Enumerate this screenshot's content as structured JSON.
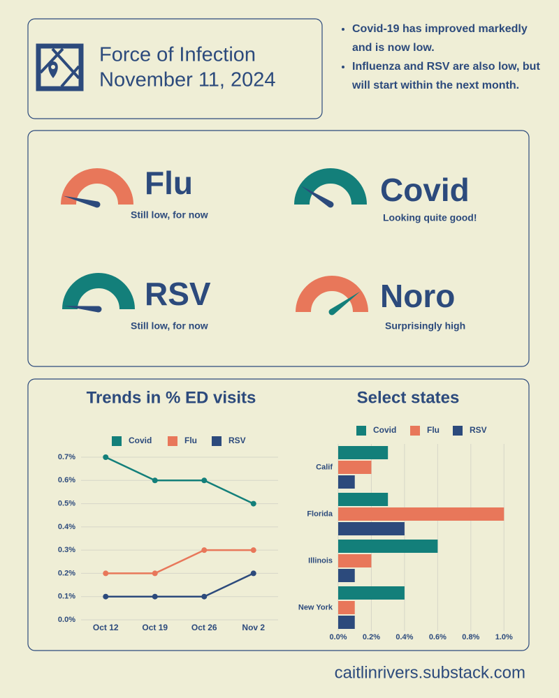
{
  "header": {
    "title": "Force of Infection",
    "date": "November 11, 2024"
  },
  "bullets": [
    "Covid-19 has improved markedly and is now low.",
    "Influenza and RSV are also low, but will start within the next month."
  ],
  "gauges": [
    {
      "name": "Flu",
      "caption": "Still low, for now",
      "level": 0.08,
      "color": "#e8775a",
      "needle_color": "#2c4a7c"
    },
    {
      "name": "Covid",
      "caption": "Looking quite good!",
      "level": 0.18,
      "color": "#137f7a",
      "needle_color": "#2c4a7c"
    },
    {
      "name": "RSV",
      "caption": "Still low, for now",
      "level": 0.03,
      "color": "#137f7a",
      "needle_color": "#2c4a7c"
    },
    {
      "name": "Noro",
      "caption": "Surprisingly high",
      "level": 0.8,
      "color": "#e8775a",
      "needle_color": "#137f7a"
    }
  ],
  "chart_data": [
    {
      "type": "line",
      "title": "Trends in % ED visits",
      "categories": [
        "Oct 12",
        "Oct 19",
        "Oct 26",
        "Nov 2"
      ],
      "series": [
        {
          "name": "Covid",
          "color": "#137f7a",
          "values": [
            0.7,
            0.6,
            0.6,
            0.5
          ]
        },
        {
          "name": "Flu",
          "color": "#e8775a",
          "values": [
            0.2,
            0.2,
            0.3,
            0.3
          ]
        },
        {
          "name": "RSV",
          "color": "#2c4a7c",
          "values": [
            0.1,
            0.1,
            0.1,
            0.2
          ]
        }
      ],
      "ylim": [
        0,
        0.7
      ],
      "yticks": [
        {
          "value": 0,
          "label": "0.0%"
        },
        {
          "value": 0.1,
          "label": "0.1%"
        },
        {
          "value": 0.2,
          "label": "0.2%"
        },
        {
          "value": 0.3,
          "label": "0.3%"
        },
        {
          "value": 0.4,
          "label": "0.4%"
        },
        {
          "value": 0.5,
          "label": "0.5%"
        },
        {
          "value": 0.6,
          "label": "0.6%"
        },
        {
          "value": 0.7,
          "label": "0.7%"
        }
      ],
      "grid": true
    },
    {
      "type": "hbar",
      "title": "Select states",
      "categories": [
        "Calif",
        "Florida",
        "Illinois",
        "New York"
      ],
      "series": [
        {
          "name": "Covid",
          "color": "#137f7a",
          "values": [
            0.3,
            0.3,
            0.6,
            0.4
          ]
        },
        {
          "name": "Flu",
          "color": "#e8775a",
          "values": [
            0.2,
            1.0,
            0.2,
            0.1
          ]
        },
        {
          "name": "RSV",
          "color": "#2c4a7c",
          "values": [
            0.1,
            0.4,
            0.1,
            0.1
          ]
        }
      ],
      "xlim": [
        0,
        1.1
      ],
      "xticks": [
        {
          "value": 0,
          "label": "0.0%"
        },
        {
          "value": 0.2,
          "label": "0.2%"
        },
        {
          "value": 0.4,
          "label": "0.4%"
        },
        {
          "value": 0.6,
          "label": "0.6%"
        },
        {
          "value": 0.8,
          "label": "0.8%"
        },
        {
          "value": 1.0,
          "label": "1.0%"
        }
      ],
      "grid": true
    }
  ],
  "footer": "caitlinrivers.substack.com"
}
